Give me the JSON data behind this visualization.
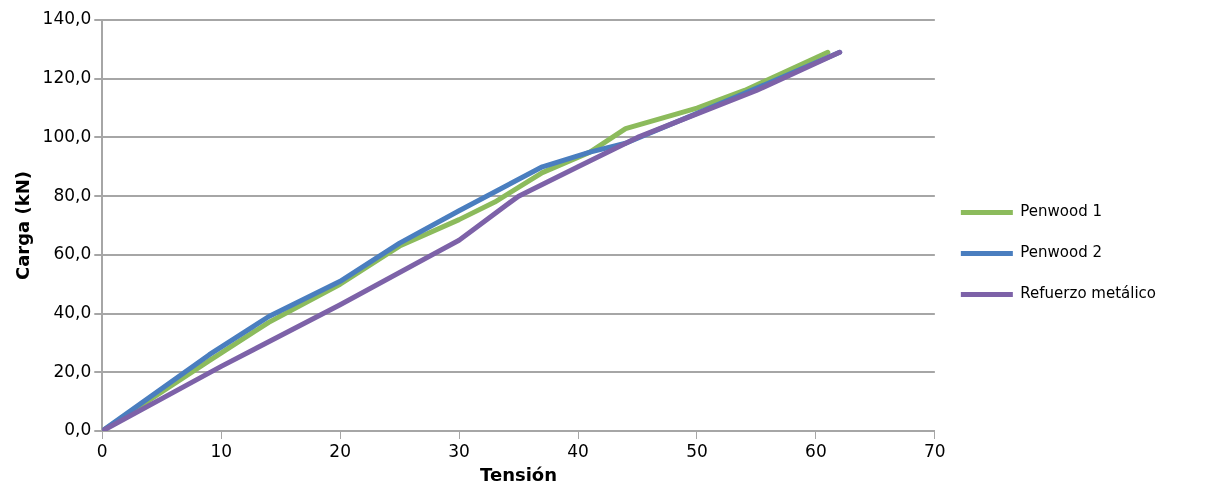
{
  "chart_data": {
    "type": "line",
    "xlabel": "Tensión",
    "ylabel": "Carga (kN)",
    "xlim": [
      0,
      70
    ],
    "xticks": [
      0,
      10,
      20,
      30,
      40,
      50,
      60,
      70
    ],
    "ylim": [
      0,
      140
    ],
    "yticks": [
      {
        "value": 0,
        "label": "0,0"
      },
      {
        "value": 20,
        "label": "20,0"
      },
      {
        "value": 40,
        "label": "40,0"
      },
      {
        "value": 60,
        "label": "60,0"
      },
      {
        "value": 80,
        "label": "80,0"
      },
      {
        "value": 100,
        "label": "100,0"
      },
      {
        "value": 120,
        "label": "120,0"
      },
      {
        "value": 140,
        "label": "140,0"
      }
    ],
    "grid": "y",
    "legend": "right",
    "marker": "none",
    "line_style": "solid",
    "series": [
      {
        "name": "Penwood 1",
        "color": "#8cbb5c",
        "x": [
          0,
          9,
          14,
          20,
          25,
          30,
          33,
          37,
          41,
          44,
          50,
          54,
          61
        ],
        "values": [
          0,
          24,
          37,
          50,
          63,
          72,
          78,
          88,
          95,
          103,
          110,
          116,
          129
        ]
      },
      {
        "name": "Penwood 2",
        "color": "#4a7ebf",
        "x": [
          0,
          9,
          14,
          20,
          25,
          30,
          37,
          41,
          44,
          54,
          62
        ],
        "values": [
          0,
          26,
          39,
          51,
          64,
          75,
          90,
          95,
          98,
          115,
          129
        ]
      },
      {
        "name": "Refuerzo metálico",
        "color": "#7d62a8",
        "x": [
          0,
          10,
          20,
          30,
          35,
          40,
          45,
          50,
          55,
          62
        ],
        "values": [
          0,
          22,
          43,
          65,
          80,
          90,
          100,
          108,
          116,
          129
        ]
      }
    ]
  }
}
